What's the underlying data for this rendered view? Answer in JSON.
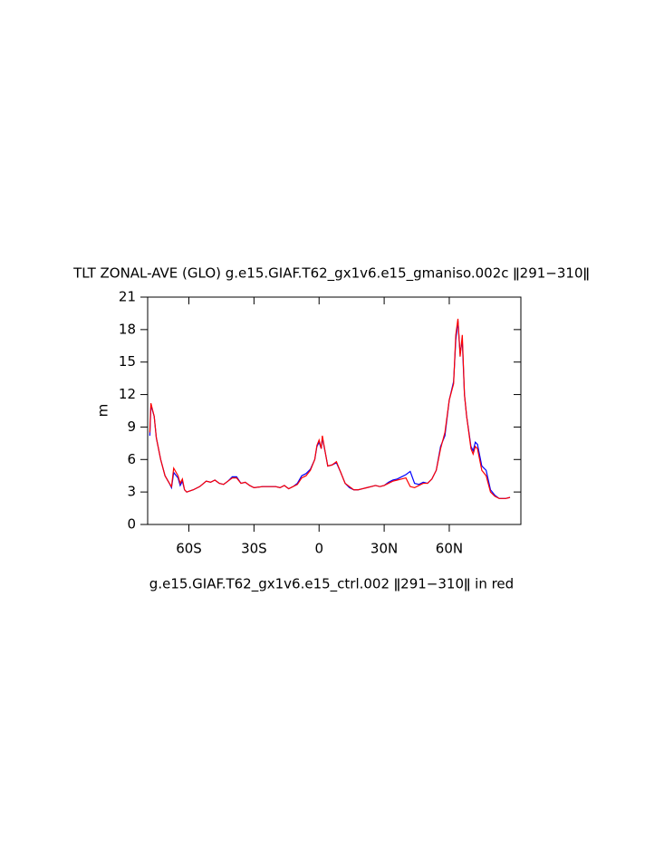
{
  "chart_data": {
    "type": "line",
    "title": "TLT ZONAL-AVE (GLO) g.e15.GIAF.T62_gx1v6.e15_gmaniso.002c ǁ291−310ǁ",
    "subtitle": "g.e15.GIAF.T62_gx1v6.e15_ctrl.002 ǁ291−310ǁ in red",
    "y_label": "m",
    "x": [
      -78,
      -77.5,
      -76,
      -75,
      -73,
      -71,
      -69,
      -68,
      -67,
      -65,
      -64,
      -63,
      -62,
      -61,
      -58,
      -55,
      -52,
      -50,
      -48,
      -46,
      -44,
      -42,
      -40,
      -38,
      -36,
      -34,
      -32,
      -30,
      -26,
      -22,
      -20,
      -18,
      -16,
      -14,
      -12,
      -10,
      -8,
      -6,
      -4,
      -2,
      -1,
      0,
      1,
      1.5,
      3,
      4,
      6,
      8,
      10,
      12,
      14,
      16,
      18,
      20,
      22,
      24,
      26,
      28,
      30,
      32,
      34,
      36,
      38,
      40,
      42,
      44,
      46,
      48,
      50,
      52,
      54,
      56,
      58,
      60,
      62,
      63,
      64,
      65,
      66,
      67,
      68,
      70,
      71,
      72,
      73,
      75,
      77,
      79,
      81,
      83,
      86,
      88
    ],
    "series": [
      {
        "color": "#0000ff",
        "values": [
          8.2,
          11.0,
          10,
          8,
          6,
          4.5,
          3.8,
          3.4,
          4.8,
          4.3,
          3.6,
          4.0,
          3.2,
          3.0,
          3.2,
          3.5,
          4.0,
          3.9,
          4.1,
          3.8,
          3.7,
          4.0,
          4.4,
          4.4,
          3.8,
          3.9,
          3.6,
          3.4,
          3.5,
          3.5,
          3.5,
          3.4,
          3.6,
          3.3,
          3.5,
          3.8,
          4.5,
          4.7,
          5.1,
          6.0,
          7.2,
          7.6,
          7.0,
          8.0,
          6.5,
          5.4,
          5.5,
          5.7,
          4.8,
          3.8,
          3.4,
          3.2,
          3.2,
          3.3,
          3.4,
          3.5,
          3.6,
          3.5,
          3.6,
          3.9,
          4.1,
          4.2,
          4.4,
          4.6,
          4.9,
          3.8,
          3.7,
          3.9,
          3.8,
          4.2,
          5.0,
          7.2,
          8.2,
          11.5,
          13.2,
          17.0,
          18.8,
          15.8,
          17.0,
          12.0,
          10.0,
          7.2,
          6.8,
          7.6,
          7.4,
          5.4,
          5.0,
          3.2,
          2.7,
          2.4,
          2.4,
          2.5
        ]
      },
      {
        "color": "#ff0000",
        "values": [
          8.5,
          11.2,
          10,
          8,
          6,
          4.5,
          3.8,
          3.5,
          5.2,
          4.5,
          3.8,
          4.2,
          3.2,
          3.0,
          3.2,
          3.5,
          4.0,
          3.9,
          4.1,
          3.8,
          3.7,
          4.0,
          4.3,
          4.3,
          3.8,
          3.9,
          3.6,
          3.4,
          3.5,
          3.5,
          3.5,
          3.4,
          3.6,
          3.3,
          3.5,
          3.7,
          4.3,
          4.5,
          5.0,
          6.0,
          7.3,
          7.8,
          7.0,
          8.2,
          6.5,
          5.4,
          5.5,
          5.8,
          4.8,
          3.8,
          3.5,
          3.2,
          3.2,
          3.3,
          3.4,
          3.5,
          3.6,
          3.5,
          3.6,
          3.8,
          4.0,
          4.1,
          4.2,
          4.3,
          3.5,
          3.4,
          3.6,
          3.8,
          3.8,
          4.2,
          5.0,
          7.0,
          8.5,
          11.5,
          13.0,
          17.5,
          19.0,
          15.5,
          17.5,
          12.0,
          10.0,
          7.0,
          6.5,
          7.2,
          7.0,
          5.0,
          4.5,
          3.0,
          2.6,
          2.4,
          2.4,
          2.5
        ]
      }
    ],
    "xlim": [
      -79,
      93
    ],
    "xticks": [
      {
        "value": -60,
        "label": "60S"
      },
      {
        "value": -30,
        "label": "30S"
      },
      0,
      {
        "value": 30,
        "label": "30N"
      },
      {
        "value": 60,
        "label": "60N"
      }
    ],
    "ylim": [
      0,
      21
    ],
    "yticks": [
      0,
      3,
      6,
      9,
      12,
      15,
      18,
      21
    ]
  }
}
